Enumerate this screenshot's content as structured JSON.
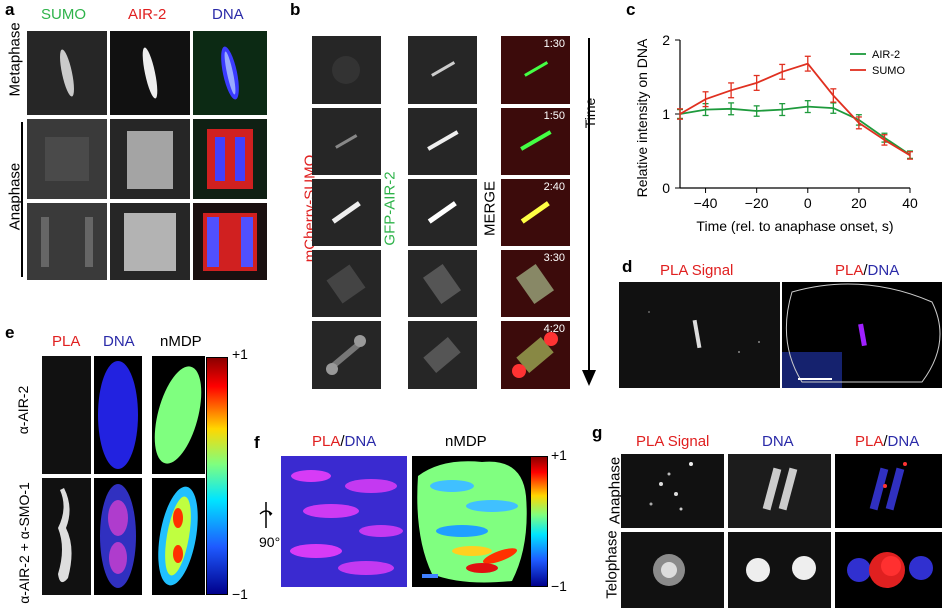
{
  "panel_a": {
    "letter": "a",
    "col_headers": [
      {
        "text": "SUMO",
        "color": "#2eb34a"
      },
      {
        "text": "AIR-2",
        "color": "#e02020"
      },
      {
        "text": "DNA",
        "color": "#2a2aa8"
      }
    ],
    "row_labels": {
      "metaphase": "Metaphase",
      "anaphase": "Anaphase"
    }
  },
  "panel_b": {
    "letter": "b",
    "column_labels": {
      "sumo": "mCherry-SUMO",
      "air2": "GFP-AIR-2",
      "merge": "MERGE"
    },
    "time_label": "Time",
    "timestamps": [
      "1:30",
      "1:50",
      "2:40",
      "3:30",
      "4:20"
    ]
  },
  "panel_c": {
    "letter": "c",
    "chart_data": {
      "type": "line",
      "ylabel": "Relative intensity on DNA",
      "xlabel": "Time (rel. to anaphase onset, s)",
      "xlim": [
        -50,
        40
      ],
      "ylim": [
        0,
        2
      ],
      "xticks": [
        -40,
        -20,
        0,
        20,
        40
      ],
      "xtick_labels": [
        "−40",
        "−20",
        "0",
        "20",
        "40"
      ],
      "yticks": [
        0,
        1,
        2
      ],
      "ytick_labels": [
        "0",
        "1",
        "2"
      ],
      "legend_position": "top-right",
      "series": [
        {
          "name": "AIR-2",
          "color": "#1e9a3c",
          "x": [
            -50,
            -40,
            -30,
            -20,
            -10,
            0,
            10,
            20,
            30,
            40
          ],
          "y": [
            1.0,
            1.06,
            1.07,
            1.04,
            1.06,
            1.1,
            1.08,
            0.92,
            0.68,
            0.45
          ],
          "err": [
            0.06,
            0.08,
            0.08,
            0.07,
            0.08,
            0.08,
            0.07,
            0.07,
            0.06,
            0.05
          ]
        },
        {
          "name": "SUMO",
          "color": "#e03020",
          "x": [
            -50,
            -40,
            -30,
            -20,
            -10,
            0,
            10,
            20,
            30,
            40
          ],
          "y": [
            1.0,
            1.2,
            1.32,
            1.42,
            1.57,
            1.68,
            1.25,
            0.88,
            0.65,
            0.44
          ],
          "err": [
            0.07,
            0.1,
            0.1,
            0.1,
            0.1,
            0.1,
            0.09,
            0.08,
            0.07,
            0.05
          ]
        }
      ]
    }
  },
  "panel_d": {
    "letter": "d",
    "left_label": "PLA Signal",
    "right_label": {
      "pla": "PLA",
      "sep": "/",
      "dna": "DNA"
    }
  },
  "panel_e": {
    "letter": "e",
    "col_headers": [
      {
        "text": "PLA",
        "color": "#e02020"
      },
      {
        "text": "DNA",
        "color": "#2a2aa8"
      },
      {
        "text": "nMDP",
        "color": "#000000"
      }
    ],
    "row_labels": {
      "top": "α-AIR-2",
      "bottom": "α-AIR-2 + α-SMO-1"
    },
    "scale": {
      "max": "+1",
      "min": "−1"
    }
  },
  "panel_f": {
    "letter": "f",
    "label_left": {
      "pla": "PLA",
      "sep": "/",
      "dna": "DNA"
    },
    "label_right": "nMDP",
    "rotation": "90°",
    "scale": {
      "max": "+1",
      "min": "−1"
    }
  },
  "panel_g": {
    "letter": "g",
    "col_headers": {
      "pla_signal": "PLA Signal",
      "dna": "DNA",
      "merge_pla": "PLA",
      "merge_sep": "/",
      "merge_dna": "DNA"
    },
    "row_labels": {
      "anaphase": "Anaphase",
      "telophase": "Telophase"
    }
  }
}
